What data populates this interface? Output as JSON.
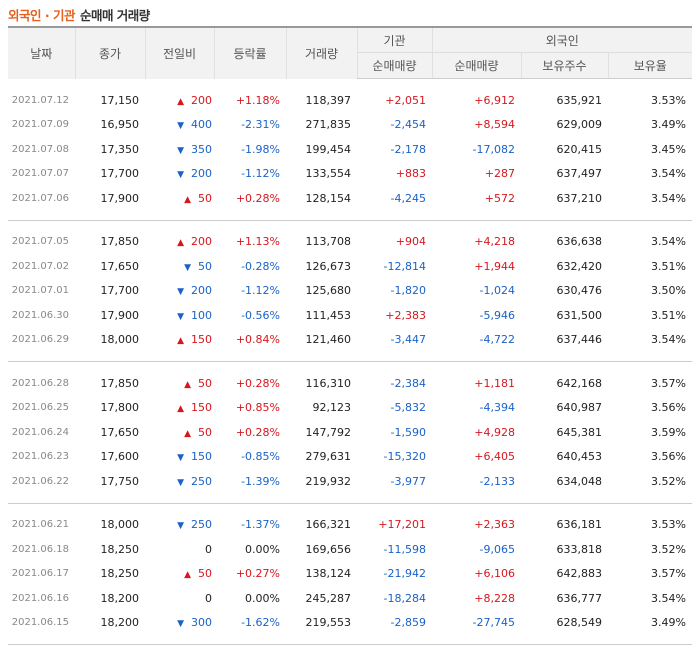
{
  "title": {
    "part1": "외국인 · 기관",
    "part2": "순매매 거래량"
  },
  "headers": {
    "date": "날짜",
    "close": "종가",
    "change": "전일비",
    "rate": "등락률",
    "volume": "거래량",
    "inst_group": "기관",
    "foreign_group": "외국인",
    "inst_net": "순매매량",
    "foreign_net": "순매매량",
    "foreign_holding": "보유주수",
    "foreign_ratio": "보유율"
  },
  "groups": [
    [
      {
        "date": "2021.07.12",
        "close": "17,150",
        "dir": "up",
        "change": "200",
        "rate": "+1.18%",
        "volume": "118,397",
        "inst": "+2,051",
        "foreign": "+6,912",
        "holding": "635,921",
        "ratio": "3.53%"
      },
      {
        "date": "2021.07.09",
        "close": "16,950",
        "dir": "down",
        "change": "400",
        "rate": "-2.31%",
        "volume": "271,835",
        "inst": "-2,454",
        "foreign": "+8,594",
        "holding": "629,009",
        "ratio": "3.49%"
      },
      {
        "date": "2021.07.08",
        "close": "17,350",
        "dir": "down",
        "change": "350",
        "rate": "-1.98%",
        "volume": "199,454",
        "inst": "-2,178",
        "foreign": "-17,082",
        "holding": "620,415",
        "ratio": "3.45%"
      },
      {
        "date": "2021.07.07",
        "close": "17,700",
        "dir": "down",
        "change": "200",
        "rate": "-1.12%",
        "volume": "133,554",
        "inst": "+883",
        "foreign": "+287",
        "holding": "637,497",
        "ratio": "3.54%"
      },
      {
        "date": "2021.07.06",
        "close": "17,900",
        "dir": "up",
        "change": "50",
        "rate": "+0.28%",
        "volume": "128,154",
        "inst": "-4,245",
        "foreign": "+572",
        "holding": "637,210",
        "ratio": "3.54%"
      }
    ],
    [
      {
        "date": "2021.07.05",
        "close": "17,850",
        "dir": "up",
        "change": "200",
        "rate": "+1.13%",
        "volume": "113,708",
        "inst": "+904",
        "foreign": "+4,218",
        "holding": "636,638",
        "ratio": "3.54%"
      },
      {
        "date": "2021.07.02",
        "close": "17,650",
        "dir": "down",
        "change": "50",
        "rate": "-0.28%",
        "volume": "126,673",
        "inst": "-12,814",
        "foreign": "+1,944",
        "holding": "632,420",
        "ratio": "3.51%"
      },
      {
        "date": "2021.07.01",
        "close": "17,700",
        "dir": "down",
        "change": "200",
        "rate": "-1.12%",
        "volume": "125,680",
        "inst": "-1,820",
        "foreign": "-1,024",
        "holding": "630,476",
        "ratio": "3.50%"
      },
      {
        "date": "2021.06.30",
        "close": "17,900",
        "dir": "down",
        "change": "100",
        "rate": "-0.56%",
        "volume": "111,453",
        "inst": "+2,383",
        "foreign": "-5,946",
        "holding": "631,500",
        "ratio": "3.51%"
      },
      {
        "date": "2021.06.29",
        "close": "18,000",
        "dir": "up",
        "change": "150",
        "rate": "+0.84%",
        "volume": "121,460",
        "inst": "-3,447",
        "foreign": "-4,722",
        "holding": "637,446",
        "ratio": "3.54%"
      }
    ],
    [
      {
        "date": "2021.06.28",
        "close": "17,850",
        "dir": "up",
        "change": "50",
        "rate": "+0.28%",
        "volume": "116,310",
        "inst": "-2,384",
        "foreign": "+1,181",
        "holding": "642,168",
        "ratio": "3.57%"
      },
      {
        "date": "2021.06.25",
        "close": "17,800",
        "dir": "up",
        "change": "150",
        "rate": "+0.85%",
        "volume": "92,123",
        "inst": "-5,832",
        "foreign": "-4,394",
        "holding": "640,987",
        "ratio": "3.56%"
      },
      {
        "date": "2021.06.24",
        "close": "17,650",
        "dir": "up",
        "change": "50",
        "rate": "+0.28%",
        "volume": "147,792",
        "inst": "-1,590",
        "foreign": "+4,928",
        "holding": "645,381",
        "ratio": "3.59%"
      },
      {
        "date": "2021.06.23",
        "close": "17,600",
        "dir": "down",
        "change": "150",
        "rate": "-0.85%",
        "volume": "279,631",
        "inst": "-15,320",
        "foreign": "+6,405",
        "holding": "640,453",
        "ratio": "3.56%"
      },
      {
        "date": "2021.06.22",
        "close": "17,750",
        "dir": "down",
        "change": "250",
        "rate": "-1.39%",
        "volume": "219,932",
        "inst": "-3,977",
        "foreign": "-2,133",
        "holding": "634,048",
        "ratio": "3.52%"
      }
    ],
    [
      {
        "date": "2021.06.21",
        "close": "18,000",
        "dir": "down",
        "change": "250",
        "rate": "-1.37%",
        "volume": "166,321",
        "inst": "+17,201",
        "foreign": "+2,363",
        "holding": "636,181",
        "ratio": "3.53%"
      },
      {
        "date": "2021.06.18",
        "close": "18,250",
        "dir": "none",
        "change": "0",
        "rate": "0.00%",
        "volume": "169,656",
        "inst": "-11,598",
        "foreign": "-9,065",
        "holding": "633,818",
        "ratio": "3.52%"
      },
      {
        "date": "2021.06.17",
        "close": "18,250",
        "dir": "up",
        "change": "50",
        "rate": "+0.27%",
        "volume": "138,124",
        "inst": "-21,942",
        "foreign": "+6,106",
        "holding": "642,883",
        "ratio": "3.57%"
      },
      {
        "date": "2021.06.16",
        "close": "18,200",
        "dir": "none",
        "change": "0",
        "rate": "0.00%",
        "volume": "245,287",
        "inst": "-18,284",
        "foreign": "+8,228",
        "holding": "636,777",
        "ratio": "3.54%"
      },
      {
        "date": "2021.06.15",
        "close": "18,200",
        "dir": "down",
        "change": "300",
        "rate": "-1.62%",
        "volume": "219,553",
        "inst": "-2,859",
        "foreign": "-27,745",
        "holding": "628,549",
        "ratio": "3.49%"
      }
    ]
  ],
  "icons": {
    "up": "triangle-up-icon",
    "down": "triangle-down-icon"
  },
  "colors": {
    "up": "#d6171e",
    "down": "#1a62c7",
    "title_accent": "#e8601c"
  }
}
